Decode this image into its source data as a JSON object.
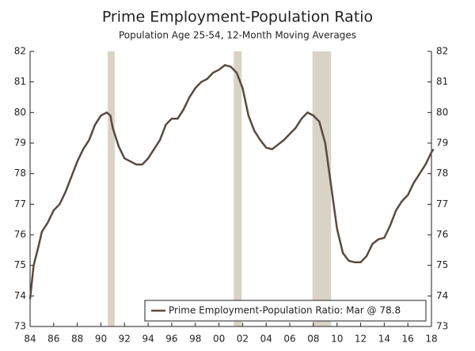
{
  "chart_data": {
    "type": "line",
    "title": "Prime Employment-Population Ratio",
    "subtitle": "Population Age 25-54, 12-Month Moving Averages",
    "x": [
      1984.0,
      1984.3,
      1984.7,
      1985.0,
      1985.5,
      1986.0,
      1986.5,
      1987.0,
      1987.5,
      1988.0,
      1988.5,
      1989.0,
      1989.5,
      1990.0,
      1990.5,
      1990.8,
      1991.0,
      1991.5,
      1992.0,
      1992.5,
      1993.0,
      1993.5,
      1994.0,
      1994.5,
      1995.0,
      1995.5,
      1996.0,
      1996.5,
      1997.0,
      1997.5,
      1998.0,
      1998.5,
      1999.0,
      1999.5,
      2000.0,
      2000.5,
      2001.0,
      2001.5,
      2002.0,
      2002.5,
      2003.0,
      2003.5,
      2004.0,
      2004.5,
      2005.0,
      2005.5,
      2006.0,
      2006.5,
      2007.0,
      2007.5,
      2008.0,
      2008.5,
      2009.0,
      2009.5,
      2010.0,
      2010.5,
      2011.0,
      2011.5,
      2012.0,
      2012.5,
      2013.0,
      2013.5,
      2014.0,
      2014.5,
      2015.0,
      2015.5,
      2016.0,
      2016.5,
      2017.0,
      2017.5,
      2018.0,
      2018.17
    ],
    "series": [
      {
        "name": "Prime Employment-Population Ratio: Mar @ 78.8",
        "color": "#584a42",
        "values": [
          73.9,
          75.0,
          75.6,
          76.1,
          76.4,
          76.8,
          77.0,
          77.4,
          77.9,
          78.4,
          78.8,
          79.1,
          79.6,
          79.9,
          80.0,
          79.9,
          79.5,
          78.9,
          78.5,
          78.4,
          78.3,
          78.3,
          78.5,
          78.8,
          79.1,
          79.6,
          79.8,
          79.8,
          80.1,
          80.5,
          80.8,
          81.0,
          81.1,
          81.3,
          81.4,
          81.55,
          81.5,
          81.3,
          80.8,
          79.9,
          79.4,
          79.1,
          78.85,
          78.8,
          78.95,
          79.1,
          79.3,
          79.5,
          79.8,
          80.0,
          79.9,
          79.7,
          79.0,
          77.6,
          76.2,
          75.4,
          75.15,
          75.1,
          75.1,
          75.3,
          75.7,
          75.85,
          75.9,
          76.3,
          76.8,
          77.1,
          77.3,
          77.7,
          78.0,
          78.3,
          78.7,
          78.8
        ]
      }
    ],
    "recessions": [
      [
        1990.58,
        1991.17
      ],
      [
        2001.25,
        2001.92
      ],
      [
        2007.92,
        2009.5
      ]
    ],
    "recession_color": "#d9d3c6",
    "xlim": [
      1984,
      2018
    ],
    "xticks": [
      {
        "value": 1984,
        "label": "84"
      },
      {
        "value": 1986,
        "label": "86"
      },
      {
        "value": 1988,
        "label": "88"
      },
      {
        "value": 1990,
        "label": "90"
      },
      {
        "value": 1992,
        "label": "92"
      },
      {
        "value": 1994,
        "label": "94"
      },
      {
        "value": 1996,
        "label": "96"
      },
      {
        "value": 1998,
        "label": "98"
      },
      {
        "value": 2000,
        "label": "00"
      },
      {
        "value": 2002,
        "label": "02"
      },
      {
        "value": 2004,
        "label": "04"
      },
      {
        "value": 2006,
        "label": "06"
      },
      {
        "value": 2008,
        "label": "08"
      },
      {
        "value": 2010,
        "label": "10"
      },
      {
        "value": 2012,
        "label": "12"
      },
      {
        "value": 2014,
        "label": "14"
      },
      {
        "value": 2016,
        "label": "16"
      },
      {
        "value": 2018,
        "label": "18"
      }
    ],
    "ylim": [
      73,
      82
    ],
    "yticks": [
      73,
      74,
      75,
      76,
      77,
      78,
      79,
      80,
      81,
      82
    ],
    "y2lim": [
      73,
      82
    ],
    "y2ticks": [
      73,
      74,
      75,
      76,
      77,
      78,
      79,
      80,
      81,
      82
    ],
    "legend": "lower right"
  }
}
